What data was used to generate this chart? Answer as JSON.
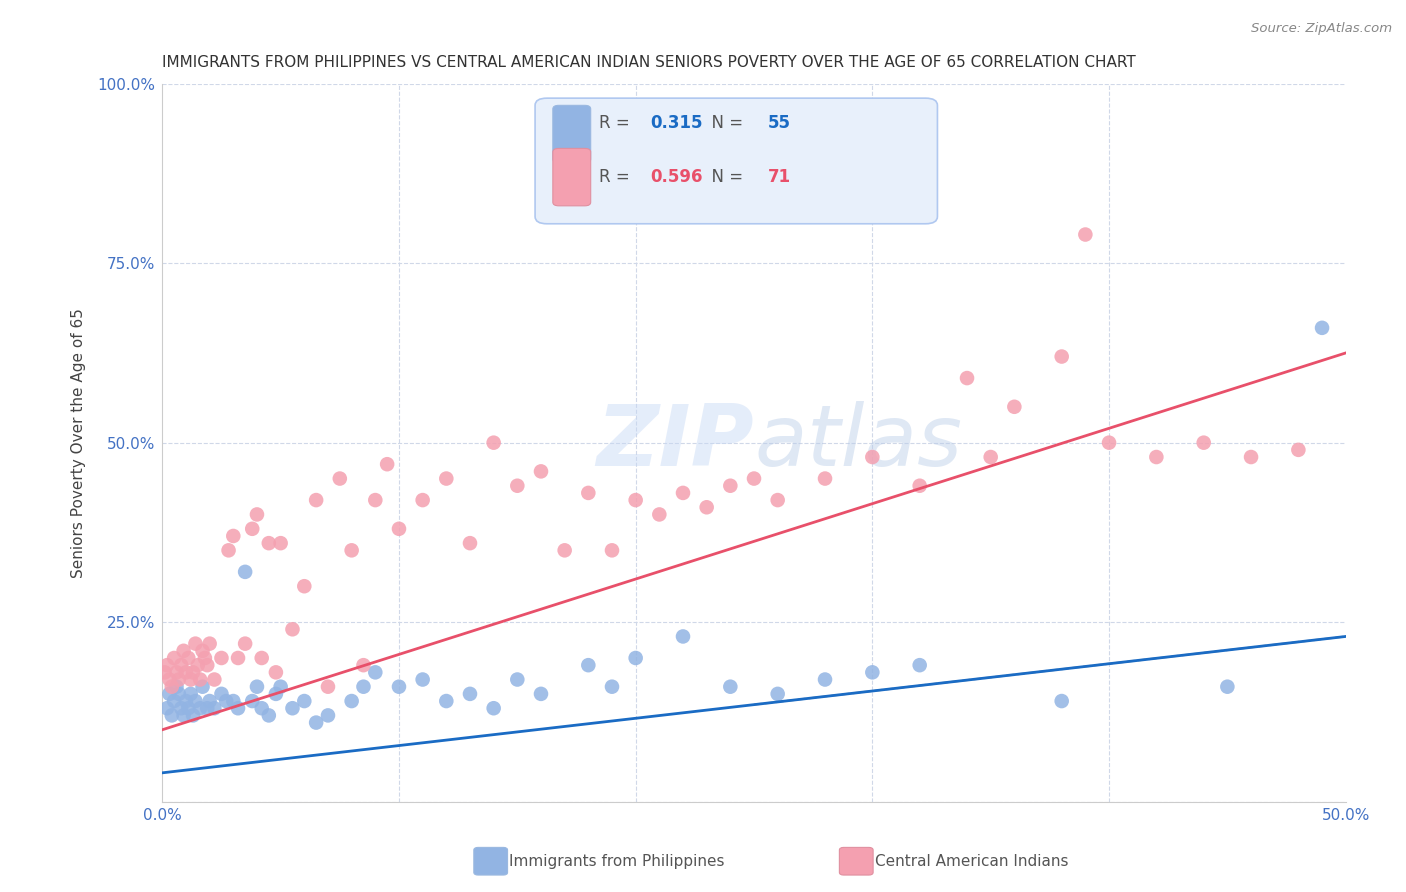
{
  "title": "IMMIGRANTS FROM PHILIPPINES VS CENTRAL AMERICAN INDIAN SENIORS POVERTY OVER THE AGE OF 65 CORRELATION CHART",
  "source": "Source: ZipAtlas.com",
  "ylabel": "Seniors Poverty Over the Age of 65",
  "xlim": [
    0.0,
    0.5
  ],
  "ylim": [
    0.0,
    1.0
  ],
  "xticks": [
    0.0,
    0.1,
    0.2,
    0.3,
    0.4,
    0.5
  ],
  "xticklabels": [
    "0.0%",
    "",
    "",
    "",
    "",
    "50.0%"
  ],
  "yticks": [
    0.0,
    0.25,
    0.5,
    0.75,
    1.0
  ],
  "yticklabels": [
    "",
    "25.0%",
    "50.0%",
    "75.0%",
    "100.0%"
  ],
  "series1_name": "Immigrants from Philippines",
  "series1_color": "#92b4e3",
  "series1_R": 0.315,
  "series1_N": 55,
  "series1_line_color": "#1a6bc4",
  "series1_line_slope": 0.38,
  "series1_line_intercept": 0.04,
  "series2_name": "Central American Indians",
  "series2_color": "#f4a0b0",
  "series2_R": 0.596,
  "series2_N": 71,
  "series2_line_color": "#e8506a",
  "series2_line_slope": 1.05,
  "series2_line_intercept": 0.1,
  "watermark_part1": "ZIP",
  "watermark_part2": "atlas",
  "legend_box_color": "#e8f0fb",
  "legend_border_color": "#b0c8f0",
  "grid_color": "#d0d8e8",
  "title_color": "#333333",
  "axis_color": "#4472c4",
  "background_color": "#ffffff",
  "series1_x": [
    0.002,
    0.003,
    0.004,
    0.005,
    0.006,
    0.007,
    0.008,
    0.009,
    0.01,
    0.011,
    0.012,
    0.013,
    0.014,
    0.016,
    0.017,
    0.019,
    0.02,
    0.022,
    0.025,
    0.027,
    0.03,
    0.032,
    0.035,
    0.038,
    0.04,
    0.042,
    0.045,
    0.048,
    0.05,
    0.055,
    0.06,
    0.065,
    0.07,
    0.08,
    0.085,
    0.09,
    0.1,
    0.11,
    0.12,
    0.13,
    0.14,
    0.15,
    0.16,
    0.18,
    0.19,
    0.2,
    0.22,
    0.24,
    0.26,
    0.28,
    0.3,
    0.32,
    0.38,
    0.45,
    0.49
  ],
  "series1_y": [
    0.13,
    0.15,
    0.12,
    0.14,
    0.16,
    0.15,
    0.13,
    0.12,
    0.14,
    0.13,
    0.15,
    0.12,
    0.14,
    0.13,
    0.16,
    0.13,
    0.14,
    0.13,
    0.15,
    0.14,
    0.14,
    0.13,
    0.32,
    0.14,
    0.16,
    0.13,
    0.12,
    0.15,
    0.16,
    0.13,
    0.14,
    0.11,
    0.12,
    0.14,
    0.16,
    0.18,
    0.16,
    0.17,
    0.14,
    0.15,
    0.13,
    0.17,
    0.15,
    0.19,
    0.16,
    0.2,
    0.23,
    0.16,
    0.15,
    0.17,
    0.18,
    0.19,
    0.14,
    0.16,
    0.66
  ],
  "series2_x": [
    0.001,
    0.002,
    0.003,
    0.004,
    0.005,
    0.006,
    0.007,
    0.008,
    0.009,
    0.01,
    0.011,
    0.012,
    0.013,
    0.014,
    0.015,
    0.016,
    0.017,
    0.018,
    0.019,
    0.02,
    0.022,
    0.025,
    0.028,
    0.03,
    0.032,
    0.035,
    0.038,
    0.04,
    0.042,
    0.045,
    0.048,
    0.05,
    0.055,
    0.06,
    0.065,
    0.07,
    0.075,
    0.08,
    0.085,
    0.09,
    0.095,
    0.1,
    0.11,
    0.12,
    0.13,
    0.14,
    0.15,
    0.16,
    0.17,
    0.18,
    0.19,
    0.2,
    0.21,
    0.22,
    0.23,
    0.24,
    0.25,
    0.26,
    0.28,
    0.3,
    0.32,
    0.34,
    0.35,
    0.36,
    0.38,
    0.39,
    0.4,
    0.42,
    0.44,
    0.46,
    0.48
  ],
  "series2_y": [
    0.18,
    0.19,
    0.17,
    0.16,
    0.2,
    0.18,
    0.17,
    0.19,
    0.21,
    0.18,
    0.2,
    0.17,
    0.18,
    0.22,
    0.19,
    0.17,
    0.21,
    0.2,
    0.19,
    0.22,
    0.17,
    0.2,
    0.35,
    0.37,
    0.2,
    0.22,
    0.38,
    0.4,
    0.2,
    0.36,
    0.18,
    0.36,
    0.24,
    0.3,
    0.42,
    0.16,
    0.45,
    0.35,
    0.19,
    0.42,
    0.47,
    0.38,
    0.42,
    0.45,
    0.36,
    0.5,
    0.44,
    0.46,
    0.35,
    0.43,
    0.35,
    0.42,
    0.4,
    0.43,
    0.41,
    0.44,
    0.45,
    0.42,
    0.45,
    0.48,
    0.44,
    0.59,
    0.48,
    0.55,
    0.62,
    0.79,
    0.5,
    0.48,
    0.5,
    0.48,
    0.49
  ]
}
